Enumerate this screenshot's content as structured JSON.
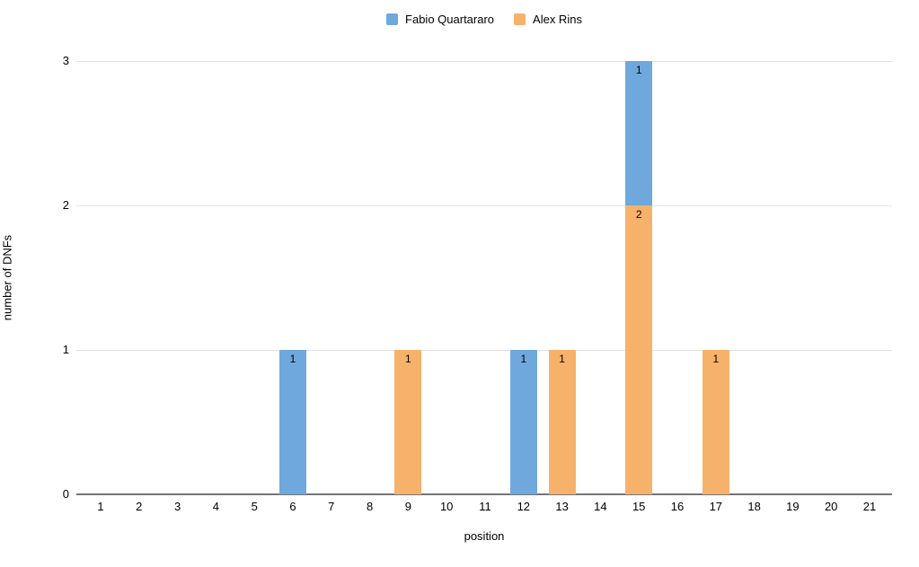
{
  "chart_data": {
    "type": "bar",
    "stacked": true,
    "title": "",
    "xlabel": "position",
    "ylabel": "number of DNFs",
    "categories": [
      1,
      2,
      3,
      4,
      5,
      6,
      7,
      8,
      9,
      10,
      11,
      12,
      13,
      14,
      15,
      16,
      17,
      18,
      19,
      20,
      21
    ],
    "series": [
      {
        "name": "Fabio Quartararo",
        "color": "#6fa8dc",
        "values": [
          0,
          0,
          0,
          0,
          0,
          1,
          0,
          0,
          0,
          0,
          0,
          1,
          0,
          0,
          1,
          0,
          0,
          0,
          0,
          0,
          0
        ]
      },
      {
        "name": "Alex Rins",
        "color": "#f6b26b",
        "values": [
          0,
          0,
          0,
          0,
          0,
          0,
          0,
          0,
          1,
          0,
          0,
          0,
          1,
          0,
          2,
          0,
          1,
          0,
          0,
          0,
          0
        ]
      }
    ],
    "stack_order_bottom_to_top": [
      "Alex Rins",
      "Fabio Quartararo"
    ],
    "ylim": [
      0,
      3
    ],
    "yticks": [
      0,
      1,
      2,
      3
    ],
    "grid": true,
    "legend_position": "top",
    "bar_value_labels": true
  },
  "colors": {
    "background": "#ffffff",
    "gridline": "#e3e3e3",
    "axis": "#757575",
    "text": "#000000"
  }
}
